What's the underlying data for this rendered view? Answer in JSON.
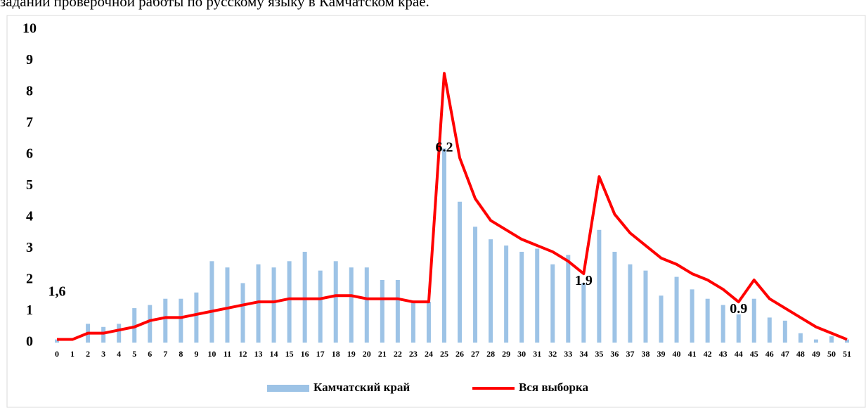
{
  "caption": "заданий проверочной работы по русскому языку в Камчатском крае.",
  "chart_data": {
    "type": "bar_line",
    "categories": [
      "0",
      "1",
      "2",
      "3",
      "4",
      "5",
      "6",
      "7",
      "8",
      "9",
      "10",
      "11",
      "12",
      "13",
      "14",
      "15",
      "16",
      "17",
      "18",
      "19",
      "20",
      "21",
      "22",
      "23",
      "24",
      "25",
      "26",
      "27",
      "28",
      "29",
      "30",
      "31",
      "32",
      "33",
      "34",
      "35",
      "36",
      "37",
      "38",
      "39",
      "40",
      "41",
      "42",
      "43",
      "44",
      "45",
      "46",
      "47",
      "48",
      "49",
      "50",
      "51"
    ],
    "series": [
      {
        "name": "Камчатский край",
        "type": "bar",
        "color": "#9dc3e6",
        "values": [
          0.1,
          0,
          0.6,
          0.5,
          0.6,
          1.1,
          1.2,
          1.4,
          1.4,
          1.6,
          2.6,
          2.4,
          1.9,
          2.5,
          2.4,
          2.6,
          2.9,
          2.3,
          2.6,
          2.4,
          2.4,
          2.0,
          2.0,
          1.3,
          1.3,
          6.2,
          4.5,
          3.7,
          3.3,
          3.1,
          2.9,
          3.0,
          2.5,
          2.8,
          1.9,
          3.6,
          2.9,
          2.5,
          2.3,
          1.5,
          2.1,
          1.7,
          1.4,
          1.2,
          0.9,
          1.4,
          0.8,
          0.7,
          0.3,
          0.1,
          0.2,
          0.1
        ]
      },
      {
        "name": "Вся выборка",
        "type": "line",
        "color": "#ff0000",
        "values": [
          0.1,
          0.1,
          0.3,
          0.3,
          0.4,
          0.5,
          0.7,
          0.8,
          0.8,
          0.9,
          1.0,
          1.1,
          1.2,
          1.3,
          1.3,
          1.4,
          1.4,
          1.4,
          1.5,
          1.5,
          1.4,
          1.4,
          1.4,
          1.3,
          1.3,
          8.6,
          5.9,
          4.6,
          3.9,
          3.6,
          3.3,
          3.1,
          2.9,
          2.6,
          2.2,
          5.3,
          4.1,
          3.5,
          3.1,
          2.7,
          2.5,
          2.2,
          2.0,
          1.7,
          1.3,
          2.0,
          1.4,
          1.1,
          0.8,
          0.5,
          0.3,
          0.1
        ]
      }
    ],
    "annotations": [
      {
        "text": "1,6",
        "x": 0,
        "y": 1.6
      },
      {
        "text": "6.2",
        "x": 25,
        "y": 6.2
      },
      {
        "text": "1.9",
        "x": 34,
        "y": 1.95
      },
      {
        "text": "0.9",
        "x": 44,
        "y": 1.05
      }
    ],
    "ylim": [
      0,
      10
    ],
    "yticks": [
      0,
      1,
      2,
      3,
      4,
      5,
      6,
      7,
      8,
      9,
      10
    ],
    "grid": false,
    "legend": "bottom"
  }
}
